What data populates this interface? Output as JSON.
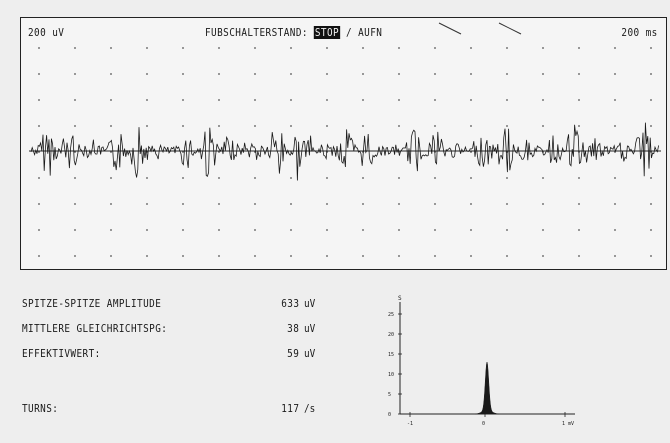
{
  "header": {
    "amplitude_scale": "200 uV",
    "footswitch_label": "FUBSCHALTERSTAND:",
    "footswitch_active": "STOP",
    "footswitch_separator": "/",
    "footswitch_other": "AUFN",
    "time_scale": "200 ms"
  },
  "measurements": [
    {
      "label": "SPITZE-SPITZE AMPLITUDE",
      "value": "633",
      "unit": "uV"
    },
    {
      "label": "MITTLERE GLEICHRICHTSPG:",
      "value": "38",
      "unit": "uV"
    },
    {
      "label": "EFFEKTIVWERT:",
      "value": "59",
      "unit": "uV"
    },
    {
      "label": "TURNS:",
      "value": "117",
      "unit": "/s"
    }
  ],
  "histogram": {
    "y_ticks": [
      "25",
      "20",
      "15",
      "10",
      "5",
      "0"
    ],
    "x_ticks": [
      "-1",
      "0",
      "1 mV"
    ],
    "y_axis_marker": "S"
  },
  "colors": {
    "trace": "#1a1a1a",
    "background": "#f5f5f5",
    "highlight_bg": "#111111"
  }
}
